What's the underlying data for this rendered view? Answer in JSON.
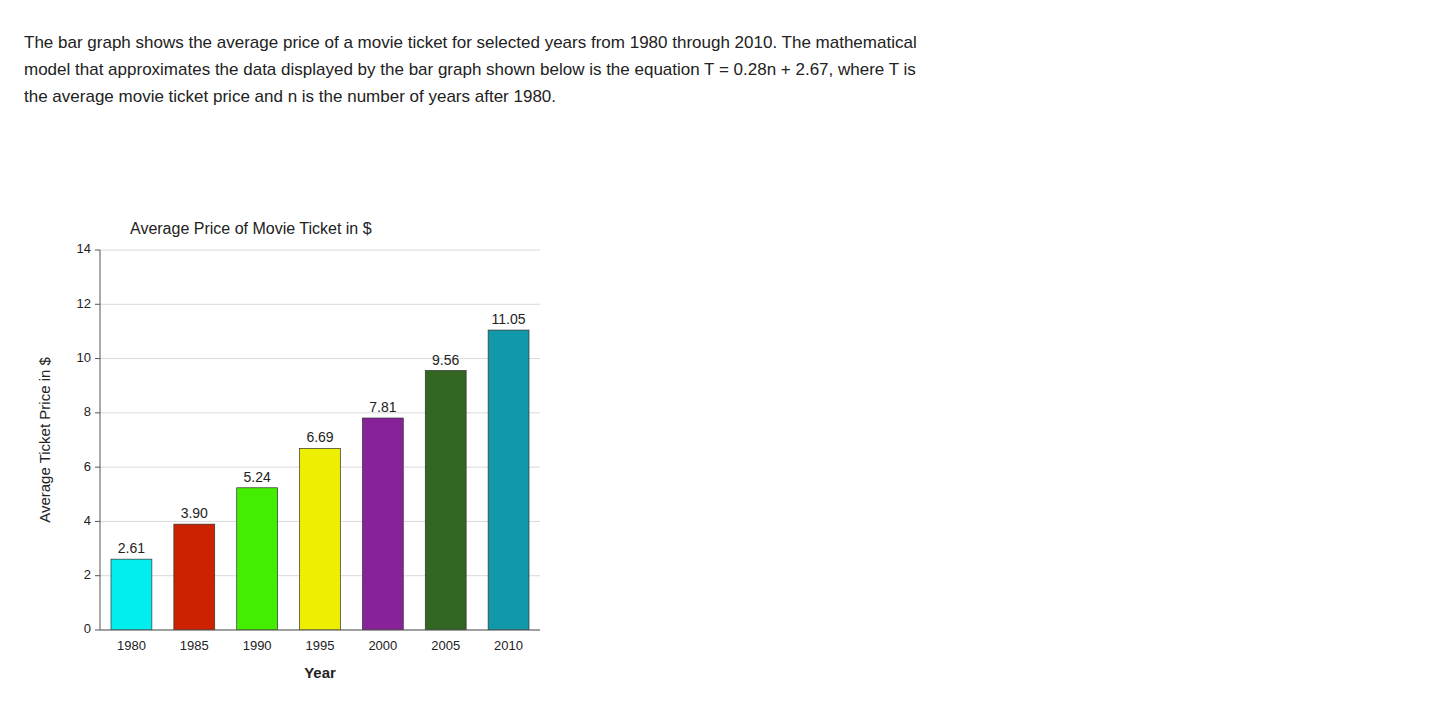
{
  "chart_data": {
    "type": "bar",
    "title": "Average Price of Movie Ticket in $",
    "subtitle": "The bar graph shows the average price of a movie ticket for selected years from 1980 through 2010. The mathematical\nmodel that approximates the data displayed by the bar graph shown below is the equation T = 0.28n + 2.67, where T is\nthe average movie ticket price and n is the number of years after 1980.",
    "x_label": "Year",
    "y_label": "Average Ticket Price in $",
    "categories": [
      "1980",
      "1985",
      "1990",
      "1995",
      "2000",
      "2005",
      "2010"
    ],
    "values": [
      2.61,
      3.9,
      5.24,
      6.69,
      7.81,
      9.56,
      11.05
    ],
    "value_labels": [
      "2.61",
      "3.90",
      "5.24",
      "6.69",
      "7.81",
      "9.56",
      "11.05"
    ],
    "colors": [
      "#00EEEE",
      "#CC2200",
      "#44EE00",
      "#EEEE00",
      "#882299",
      "#336622",
      "#1199AA"
    ],
    "ylim": [
      0,
      14
    ],
    "yticks": [
      0,
      2,
      4,
      6,
      8,
      10,
      12,
      14
    ],
    "grid": true,
    "data_labels": true
  }
}
